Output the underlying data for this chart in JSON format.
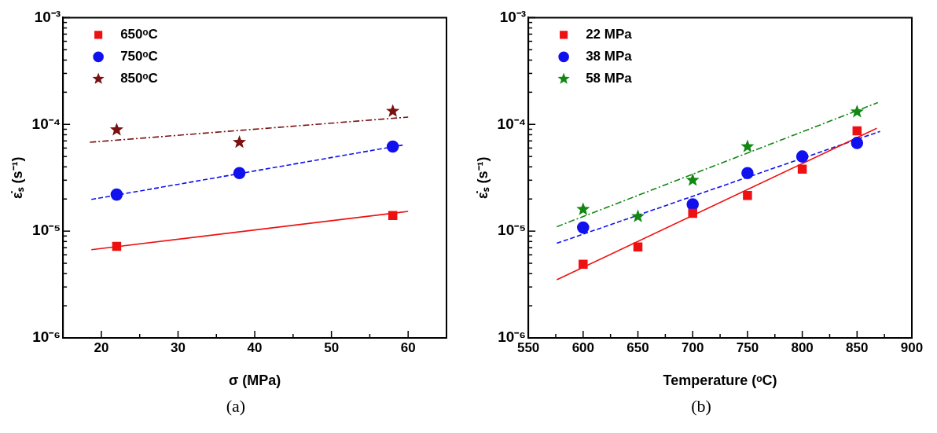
{
  "chart_data": [
    {
      "type": "scatter",
      "xlabel": "σ (MPa)",
      "ylabel": "ε̇ₛ (s⁻¹)",
      "log": "y",
      "legend": "top left",
      "annotations": [
        "(a)"
      ],
      "xlim": [
        15,
        65
      ],
      "xticks": [
        20,
        {
          "value": 25,
          "label": null
        },
        30,
        {
          "value": 35,
          "label": null
        },
        40,
        {
          "value": 45,
          "label": null
        },
        50,
        {
          "value": 55,
          "label": null
        },
        60
      ],
      "ylim": [
        1e-06,
        0.001
      ],
      "yticks": [
        {
          "value": 1e-06,
          "label": "10⁻⁶"
        },
        {
          "value": 2e-06,
          "label": null
        },
        {
          "value": 3e-06,
          "label": null
        },
        {
          "value": 4e-06,
          "label": null
        },
        {
          "value": 5e-06,
          "label": null
        },
        {
          "value": 6e-06,
          "label": null
        },
        {
          "value": 7e-06,
          "label": null
        },
        {
          "value": 8e-06,
          "label": null
        },
        {
          "value": 9e-06,
          "label": null
        },
        {
          "value": 1e-05,
          "label": "10⁻⁵"
        },
        {
          "value": 2e-05,
          "label": null
        },
        {
          "value": 3e-05,
          "label": null
        },
        {
          "value": 4e-05,
          "label": null
        },
        {
          "value": 5e-05,
          "label": null
        },
        {
          "value": 6e-05,
          "label": null
        },
        {
          "value": 7e-05,
          "label": null
        },
        {
          "value": 8e-05,
          "label": null
        },
        {
          "value": 9e-05,
          "label": null
        },
        {
          "value": 0.0001,
          "label": "10⁻⁴"
        },
        {
          "value": 0.0002,
          "label": null
        },
        {
          "value": 0.0003,
          "label": null
        },
        {
          "value": 0.0004,
          "label": null
        },
        {
          "value": 0.0005,
          "label": null
        },
        {
          "value": 0.0006,
          "label": null
        },
        {
          "value": 0.0007,
          "label": null
        },
        {
          "value": 0.0008,
          "label": null
        },
        {
          "value": 0.0009,
          "label": null
        },
        {
          "value": 0.001,
          "label": "10⁻³"
        }
      ],
      "series": [
        {
          "type": "scatter",
          "name": "650ᵒC",
          "color": "#ee1111",
          "marker": "square",
          "x": [
            22,
            58
          ],
          "values": [
            7.2e-06,
            1.4e-05
          ]
        },
        {
          "type": "scatter",
          "name": "750ᵒC",
          "color": "#1111ee",
          "marker": "circle",
          "x": [
            22,
            38,
            58
          ],
          "values": [
            2.2e-05,
            3.5e-05,
            6.2e-05
          ]
        },
        {
          "type": "scatter",
          "name": "850ᵒC",
          "color": "#7a1010",
          "marker": "star",
          "x": [
            22,
            38,
            58
          ],
          "values": [
            8.9e-05,
            6.8e-05,
            0.000133
          ]
        },
        {
          "type": "line",
          "color": "#ee1111",
          "marker": "none",
          "line_style": "solid",
          "x": [
            18.7,
            60
          ],
          "values": [
            6.7e-06,
            1.53e-05
          ]
        },
        {
          "type": "line",
          "color": "#1111ee",
          "marker": "none",
          "line_style": "dashed",
          "x": [
            18.7,
            59.3
          ],
          "values": [
            1.98e-05,
            6.4e-05
          ]
        },
        {
          "type": "line",
          "color": "#7a1010",
          "marker": "none",
          "line_style": "dashdot",
          "x": [
            18.5,
            60
          ],
          "values": [
            6.8e-05,
            0.000117
          ]
        }
      ]
    },
    {
      "type": "scatter",
      "xlabel": "Temperature (ᵒC)",
      "ylabel": "ε̇ₛ (s⁻¹)",
      "log": "y",
      "legend": "top left",
      "annotations": [
        "(b)"
      ],
      "xlim": [
        550,
        900
      ],
      "xticks": [
        550,
        {
          "value": 575,
          "label": null
        },
        600,
        {
          "value": 625,
          "label": null
        },
        650,
        {
          "value": 675,
          "label": null
        },
        700,
        {
          "value": 725,
          "label": null
        },
        750,
        {
          "value": 775,
          "label": null
        },
        800,
        {
          "value": 825,
          "label": null
        },
        850,
        {
          "value": 875,
          "label": null
        },
        900
      ],
      "ylim": [
        1e-06,
        0.001
      ],
      "yticks": [
        {
          "value": 1e-06,
          "label": "10⁻⁶"
        },
        {
          "value": 2e-06,
          "label": null
        },
        {
          "value": 3e-06,
          "label": null
        },
        {
          "value": 4e-06,
          "label": null
        },
        {
          "value": 5e-06,
          "label": null
        },
        {
          "value": 6e-06,
          "label": null
        },
        {
          "value": 7e-06,
          "label": null
        },
        {
          "value": 8e-06,
          "label": null
        },
        {
          "value": 9e-06,
          "label": null
        },
        {
          "value": 1e-05,
          "label": "10⁻⁵"
        },
        {
          "value": 2e-05,
          "label": null
        },
        {
          "value": 3e-05,
          "label": null
        },
        {
          "value": 4e-05,
          "label": null
        },
        {
          "value": 5e-05,
          "label": null
        },
        {
          "value": 6e-05,
          "label": null
        },
        {
          "value": 7e-05,
          "label": null
        },
        {
          "value": 8e-05,
          "label": null
        },
        {
          "value": 9e-05,
          "label": null
        },
        {
          "value": 0.0001,
          "label": "10⁻⁴"
        },
        {
          "value": 0.0002,
          "label": null
        },
        {
          "value": 0.0003,
          "label": null
        },
        {
          "value": 0.0004,
          "label": null
        },
        {
          "value": 0.0005,
          "label": null
        },
        {
          "value": 0.0006,
          "label": null
        },
        {
          "value": 0.0007,
          "label": null
        },
        {
          "value": 0.0008,
          "label": null
        },
        {
          "value": 0.0009,
          "label": null
        },
        {
          "value": 0.001,
          "label": "10⁻³"
        }
      ],
      "series": [
        {
          "type": "scatter",
          "name": "22 MPa",
          "color": "#ee1111",
          "marker": "square",
          "x": [
            600,
            650,
            700,
            750,
            800,
            850
          ],
          "values": [
            4.9e-06,
            7.1e-06,
            1.47e-05,
            2.16e-05,
            3.8e-05,
            8.7e-05
          ]
        },
        {
          "type": "scatter",
          "name": "38 MPa",
          "color": "#1111ee",
          "marker": "circle",
          "x": [
            600,
            700,
            750,
            800,
            850
          ],
          "values": [
            1.08e-05,
            1.78e-05,
            3.5e-05,
            5e-05,
            6.7e-05
          ]
        },
        {
          "type": "scatter",
          "name": "58 MPa",
          "color": "#118811",
          "marker": "star",
          "x": [
            600,
            650,
            700,
            750,
            850
          ],
          "values": [
            1.6e-05,
            1.37e-05,
            3e-05,
            6.2e-05,
            0.000131
          ]
        },
        {
          "type": "line",
          "color": "#ee1111",
          "marker": "none",
          "line_style": "solid",
          "x": [
            576,
            868
          ],
          "values": [
            3.5e-06,
            9.2e-05
          ]
        },
        {
          "type": "line",
          "color": "#1111ee",
          "marker": "none",
          "line_style": "dashed",
          "x": [
            576,
            871
          ],
          "values": [
            7.7e-06,
            8.6e-05
          ]
        },
        {
          "type": "line",
          "color": "#118811",
          "marker": "none",
          "line_style": "dashdot",
          "x": [
            576,
            869
          ],
          "values": [
            1.1e-05,
            0.00016
          ]
        }
      ]
    }
  ]
}
